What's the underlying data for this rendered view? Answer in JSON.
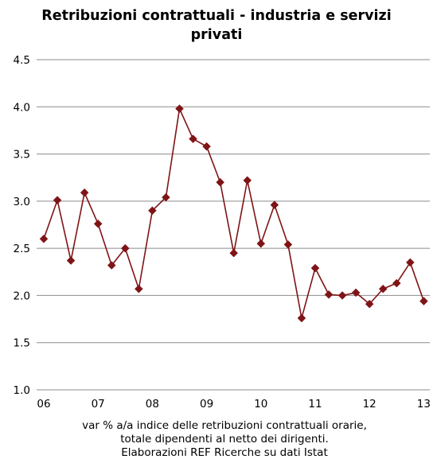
{
  "chart_data": {
    "type": "line",
    "title": "Retribuzioni contrattuali - industria e servizi privati",
    "caption": [
      "var % a/a indice delle retribuzioni contrattuali orarie,",
      "totale dipendenti al netto dei dirigenti.",
      "Elaborazioni REF Ricerche su dati Istat"
    ],
    "xlabel": "",
    "ylabel": "",
    "x_tick_labels": [
      "06",
      "07",
      "08",
      "09",
      "10",
      "11",
      "12",
      "13"
    ],
    "y_tick_labels": [
      "1.0",
      "1.5",
      "2.0",
      "2.5",
      "3.0",
      "3.5",
      "4.0",
      "4.5"
    ],
    "ylim": [
      1.0,
      4.5
    ],
    "grid": "horizontal",
    "legend": "none",
    "line_color": "#7f1416",
    "series": [
      {
        "values": [
          2.6,
          3.01,
          2.37,
          3.09,
          2.76,
          2.32,
          2.5,
          2.07,
          2.9,
          3.04,
          3.98,
          3.66,
          3.58,
          3.2,
          2.45,
          3.22,
          2.55,
          2.96,
          2.54,
          1.76,
          2.29,
          2.01,
          2.0,
          2.03,
          1.91,
          2.07,
          2.13,
          2.35,
          1.94
        ]
      }
    ]
  }
}
